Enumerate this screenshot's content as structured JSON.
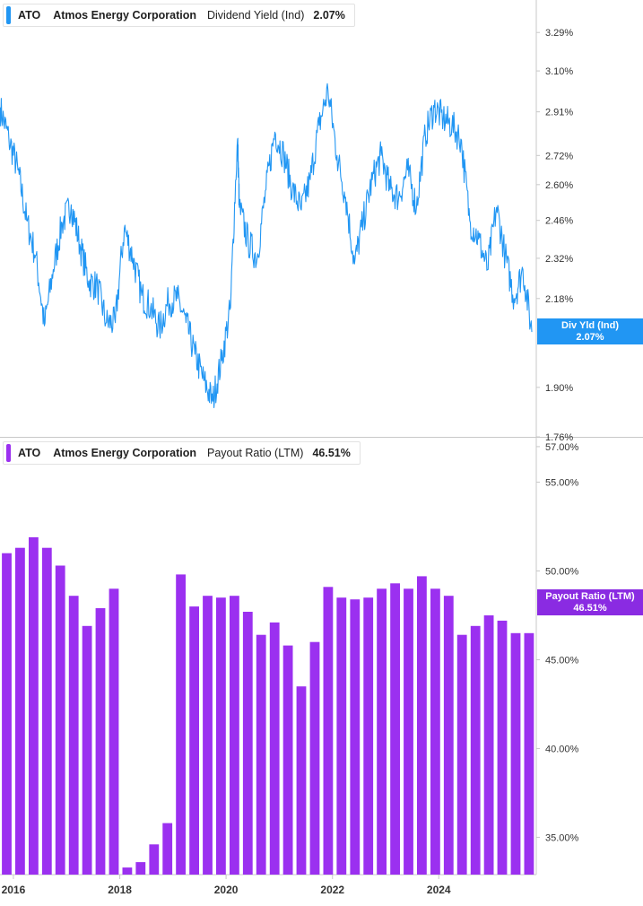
{
  "legend_top": {
    "ticker": "ATO",
    "company": "Atmos Energy Corporation",
    "metric": "Dividend Yield (Ind)",
    "value": "2.07%"
  },
  "legend_bottom": {
    "ticker": "ATO",
    "company": "Atmos Energy Corporation",
    "metric": "Payout Ratio (LTM)",
    "value": "46.51%"
  },
  "badges": {
    "top_label": "Div Yld (Ind)",
    "top_value": "2.07%",
    "bottom_label": "Payout Ratio (LTM)",
    "bottom_value": "46.51%"
  },
  "colors": {
    "yield_line": "#2196f3",
    "payout_bars": "#9b30f0",
    "axis": "#c8c8c8"
  },
  "chart_data": [
    {
      "type": "line",
      "title": "ATO Atmos Energy Corporation Dividend Yield (Ind)",
      "ylabel": "",
      "y_scale": "log",
      "ylim": [
        1.76,
        3.45
      ],
      "xlim": [
        "2015-10-01",
        "2025-11-01"
      ],
      "yticks": [
        "3.29%",
        "3.10%",
        "2.91%",
        "2.72%",
        "2.60%",
        "2.46%",
        "2.32%",
        "2.18%",
        "1.90%",
        "1.76%"
      ],
      "ytick_values": [
        3.29,
        3.1,
        2.91,
        2.72,
        2.6,
        2.46,
        2.32,
        2.18,
        1.9,
        1.76
      ],
      "series": [
        {
          "name": "Div Yld (Ind)",
          "x": [
            "2015-10-01",
            "2015-12-01",
            "2016-02-01",
            "2016-04-01",
            "2016-06-01",
            "2016-08-01",
            "2016-10-01",
            "2016-12-01",
            "2017-02-01",
            "2017-04-01",
            "2017-06-01",
            "2017-08-01",
            "2017-10-01",
            "2017-12-01",
            "2018-02-01",
            "2018-04-01",
            "2018-06-01",
            "2018-08-01",
            "2018-10-01",
            "2018-12-01",
            "2019-02-01",
            "2019-04-01",
            "2019-06-01",
            "2019-08-01",
            "2019-10-01",
            "2019-12-01",
            "2020-02-01",
            "2020-03-20",
            "2020-04-01",
            "2020-06-01",
            "2020-08-01",
            "2020-10-01",
            "2020-12-01",
            "2021-02-01",
            "2021-04-01",
            "2021-06-01",
            "2021-08-01",
            "2021-10-01",
            "2021-12-01",
            "2022-02-01",
            "2022-04-01",
            "2022-06-01",
            "2022-08-01",
            "2022-10-01",
            "2022-12-01",
            "2023-02-01",
            "2023-04-01",
            "2023-06-01",
            "2023-08-01",
            "2023-10-01",
            "2023-12-01",
            "2024-02-01",
            "2024-04-01",
            "2024-06-01",
            "2024-08-01",
            "2024-10-01",
            "2024-12-01",
            "2025-02-01",
            "2025-04-01",
            "2025-06-01",
            "2025-08-01",
            "2025-10-01"
          ],
          "values": [
            2.93,
            2.79,
            2.66,
            2.46,
            2.33,
            2.09,
            2.28,
            2.45,
            2.52,
            2.37,
            2.24,
            2.22,
            2.1,
            2.1,
            2.43,
            2.32,
            2.19,
            2.15,
            2.08,
            2.17,
            2.18,
            2.1,
            2.0,
            1.92,
            1.86,
            1.98,
            2.15,
            2.79,
            2.51,
            2.38,
            2.32,
            2.58,
            2.82,
            2.72,
            2.58,
            2.5,
            2.62,
            2.85,
            3.01,
            2.72,
            2.55,
            2.3,
            2.46,
            2.62,
            2.72,
            2.58,
            2.55,
            2.66,
            2.51,
            2.81,
            2.93,
            2.88,
            2.85,
            2.79,
            2.46,
            2.39,
            2.28,
            2.51,
            2.33,
            2.18,
            2.28,
            2.07
          ]
        }
      ]
    },
    {
      "type": "bar",
      "title": "ATO Atmos Energy Corporation Payout Ratio (LTM)",
      "ylabel": "",
      "ylim": [
        32.9,
        57.5
      ],
      "xlim": [
        "2015-10-01",
        "2025-11-01"
      ],
      "yticks": [
        "57.00%",
        "55.00%",
        "50.00%",
        "45.00%",
        "40.00%",
        "35.00%"
      ],
      "ytick_values": [
        57,
        55,
        50,
        45,
        40,
        35
      ],
      "x_tick_labels": [
        "2016",
        "2018",
        "2020",
        "2022",
        "2024"
      ],
      "x_tick_dates": [
        "2016-01-01",
        "2018-01-01",
        "2020-01-01",
        "2022-01-01",
        "2024-01-01"
      ],
      "categories": [
        "2015-Q4",
        "2016-Q1",
        "2016-Q2",
        "2016-Q3",
        "2016-Q4",
        "2017-Q1",
        "2017-Q2",
        "2017-Q3",
        "2017-Q4",
        "2018-Q1",
        "2018-Q2",
        "2018-Q3",
        "2018-Q4",
        "2019-Q1",
        "2019-Q2",
        "2019-Q3",
        "2019-Q4",
        "2020-Q1",
        "2020-Q2",
        "2020-Q3",
        "2020-Q4",
        "2021-Q1",
        "2021-Q2",
        "2021-Q3",
        "2021-Q4",
        "2022-Q1",
        "2022-Q2",
        "2022-Q3",
        "2022-Q4",
        "2023-Q1",
        "2023-Q2",
        "2023-Q3",
        "2023-Q4",
        "2024-Q1",
        "2024-Q2",
        "2024-Q3",
        "2024-Q4",
        "2025-Q1",
        "2025-Q2",
        "2025-Q3"
      ],
      "series": [
        {
          "name": "Payout Ratio (LTM)",
          "values": [
            51.0,
            51.3,
            51.9,
            51.3,
            50.3,
            48.6,
            46.9,
            47.9,
            49.0,
            33.3,
            33.6,
            34.6,
            35.8,
            49.8,
            48.0,
            48.6,
            48.5,
            48.6,
            47.7,
            46.4,
            47.1,
            45.8,
            43.5,
            46.0,
            49.1,
            48.5,
            48.4,
            48.5,
            49.0,
            49.3,
            49.0,
            49.7,
            49.0,
            48.6,
            46.4,
            46.9,
            47.5,
            47.2,
            46.5,
            46.5
          ]
        }
      ]
    }
  ]
}
